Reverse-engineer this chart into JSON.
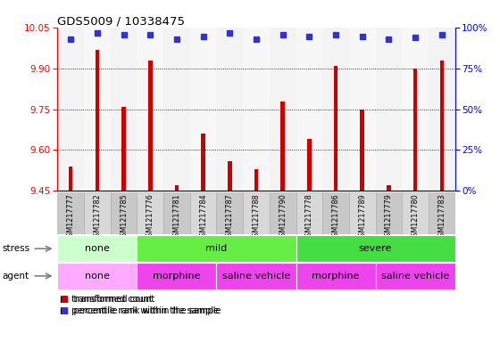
{
  "title": "GDS5009 / 10338475",
  "samples": [
    "GSM1217777",
    "GSM1217782",
    "GSM1217785",
    "GSM1217776",
    "GSM1217781",
    "GSM1217784",
    "GSM1217787",
    "GSM1217788",
    "GSM1217790",
    "GSM1217778",
    "GSM1217786",
    "GSM1217789",
    "GSM1217779",
    "GSM1217780",
    "GSM1217783"
  ],
  "transformed_count": [
    9.54,
    9.97,
    9.76,
    9.93,
    9.47,
    9.66,
    9.56,
    9.53,
    9.78,
    9.64,
    9.91,
    9.75,
    9.47,
    9.9,
    9.93
  ],
  "percentile_rank": [
    93,
    97,
    96,
    96,
    93,
    95,
    97,
    93,
    96,
    95,
    96,
    95,
    93,
    94,
    96
  ],
  "ylim_left": [
    9.45,
    10.05
  ],
  "yticks_left": [
    9.45,
    9.6,
    9.75,
    9.9,
    10.05
  ],
  "yticks_right": [
    0,
    25,
    50,
    75,
    100
  ],
  "bar_color": "#cc0000",
  "dot_color": "#3333cc",
  "stress_groups": [
    {
      "label": "none",
      "start": 0,
      "end": 3,
      "color": "#ccffcc"
    },
    {
      "label": "mild",
      "start": 3,
      "end": 9,
      "color": "#66ee44"
    },
    {
      "label": "severe",
      "start": 9,
      "end": 15,
      "color": "#44dd44"
    }
  ],
  "agent_groups": [
    {
      "label": "none",
      "start": 0,
      "end": 3,
      "color": "#ffaaff"
    },
    {
      "label": "morphine",
      "start": 3,
      "end": 6,
      "color": "#ee44ee"
    },
    {
      "label": "saline vehicle",
      "start": 6,
      "end": 9,
      "color": "#ee44ee"
    },
    {
      "label": "morphine",
      "start": 9,
      "end": 12,
      "color": "#ee44ee"
    },
    {
      "label": "saline vehicle",
      "start": 12,
      "end": 15,
      "color": "#ee44ee"
    }
  ],
  "bar_width": 0.15,
  "dot_size": 5,
  "background_color": "#ffffff"
}
